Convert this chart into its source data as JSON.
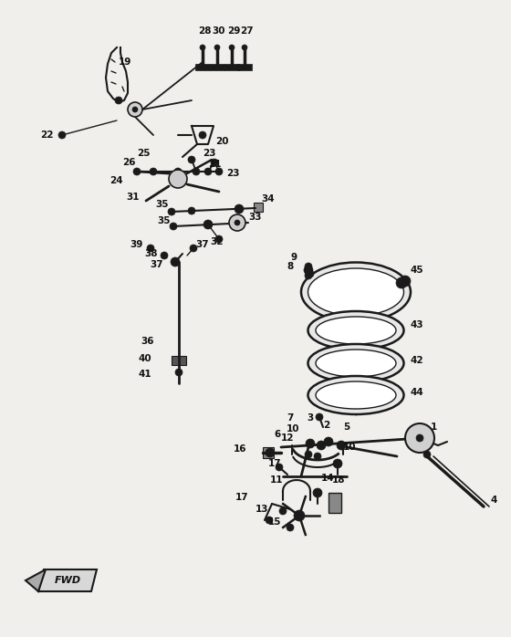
{
  "bg_color": "#f0efeb",
  "fig_width": 5.6,
  "fig_height": 6.98,
  "dpi": 100,
  "line_color": "#1a1a1a",
  "label_fontsize": 7.5,
  "label_color": "#111111"
}
